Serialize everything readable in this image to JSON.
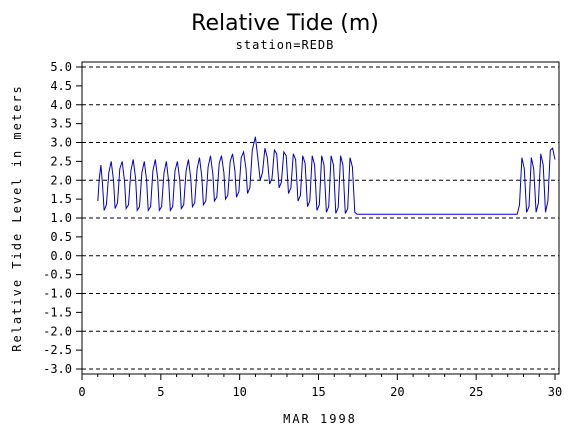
{
  "chart_data": {
    "type": "line",
    "title": "Relative Tide (m)",
    "subtitle": "station=REDB",
    "xlabel": "MAR 1998",
    "ylabel": "Relative Tide Level in meters",
    "xlim": [
      0,
      30
    ],
    "ylim": [
      -3.0,
      5.0
    ],
    "x_ticks": [
      0,
      5,
      10,
      15,
      20,
      25,
      30
    ],
    "y_ticks": [
      -3.0,
      -2.5,
      -2.0,
      -1.5,
      -1.0,
      -0.5,
      0.0,
      0.5,
      1.0,
      1.5,
      2.0,
      2.5,
      3.0,
      3.5,
      4.0,
      4.5,
      5.0
    ],
    "y_tick_labels": [
      "-3.0",
      "-2.5",
      "-2.0",
      "-1.5",
      "-1.0",
      "-0.5",
      "0.0",
      "0.5",
      "1.0",
      "1.5",
      "2.0",
      "2.5",
      "3.0",
      "3.5",
      "4.0",
      "4.5",
      "5.0"
    ],
    "dashed_gridlines_y": [
      -3.0,
      -2.0,
      -1.0,
      0.0,
      1.0,
      2.0,
      3.0,
      4.0,
      5.0
    ],
    "grid": "horizontal dashed at whole meters",
    "line_color": "#0000cc",
    "series": [
      {
        "values": [
          [
            1.0,
            1.45
          ],
          [
            1.1,
            2.05
          ],
          [
            1.2,
            2.4
          ],
          [
            1.3,
            1.9
          ],
          [
            1.4,
            1.2
          ],
          [
            1.55,
            1.35
          ],
          [
            1.7,
            2.2
          ],
          [
            1.85,
            2.5
          ],
          [
            2.0,
            2.0
          ],
          [
            2.1,
            1.25
          ],
          [
            2.25,
            1.4
          ],
          [
            2.4,
            2.3
          ],
          [
            2.55,
            2.5
          ],
          [
            2.7,
            1.95
          ],
          [
            2.8,
            1.25
          ],
          [
            2.95,
            1.35
          ],
          [
            3.1,
            2.25
          ],
          [
            3.25,
            2.55
          ],
          [
            3.4,
            2.05
          ],
          [
            3.5,
            1.2
          ],
          [
            3.65,
            1.3
          ],
          [
            3.8,
            2.2
          ],
          [
            3.95,
            2.5
          ],
          [
            4.1,
            2.0
          ],
          [
            4.2,
            1.2
          ],
          [
            4.35,
            1.3
          ],
          [
            4.5,
            2.25
          ],
          [
            4.65,
            2.55
          ],
          [
            4.8,
            2.05
          ],
          [
            4.9,
            1.2
          ],
          [
            5.05,
            1.3
          ],
          [
            5.2,
            2.2
          ],
          [
            5.35,
            2.5
          ],
          [
            5.5,
            1.95
          ],
          [
            5.6,
            1.2
          ],
          [
            5.75,
            1.3
          ],
          [
            5.9,
            2.25
          ],
          [
            6.05,
            2.5
          ],
          [
            6.2,
            2.0
          ],
          [
            6.3,
            1.25
          ],
          [
            6.45,
            1.35
          ],
          [
            6.6,
            2.25
          ],
          [
            6.75,
            2.55
          ],
          [
            6.9,
            2.05
          ],
          [
            7.0,
            1.3
          ],
          [
            7.15,
            1.4
          ],
          [
            7.3,
            2.3
          ],
          [
            7.45,
            2.6
          ],
          [
            7.6,
            2.1
          ],
          [
            7.7,
            1.35
          ],
          [
            7.85,
            1.45
          ],
          [
            8.0,
            2.35
          ],
          [
            8.15,
            2.65
          ],
          [
            8.3,
            2.15
          ],
          [
            8.4,
            1.45
          ],
          [
            8.55,
            1.55
          ],
          [
            8.7,
            2.45
          ],
          [
            8.85,
            2.65
          ],
          [
            9.0,
            2.2
          ],
          [
            9.1,
            1.5
          ],
          [
            9.25,
            1.6
          ],
          [
            9.4,
            2.5
          ],
          [
            9.55,
            2.7
          ],
          [
            9.7,
            2.25
          ],
          [
            9.8,
            1.55
          ],
          [
            9.95,
            1.7
          ],
          [
            10.1,
            2.6
          ],
          [
            10.25,
            2.75
          ],
          [
            10.4,
            2.3
          ],
          [
            10.5,
            1.65
          ],
          [
            10.65,
            1.8
          ],
          [
            10.8,
            2.8
          ],
          [
            11.0,
            3.15
          ],
          [
            11.15,
            2.6
          ],
          [
            11.3,
            2.0
          ],
          [
            11.45,
            2.2
          ],
          [
            11.6,
            2.85
          ],
          [
            11.75,
            2.6
          ],
          [
            11.9,
            1.9
          ],
          [
            12.05,
            2.05
          ],
          [
            12.2,
            2.8
          ],
          [
            12.35,
            2.7
          ],
          [
            12.5,
            1.8
          ],
          [
            12.65,
            1.95
          ],
          [
            12.8,
            2.75
          ],
          [
            12.95,
            2.65
          ],
          [
            13.1,
            1.65
          ],
          [
            13.25,
            1.8
          ],
          [
            13.4,
            2.7
          ],
          [
            13.55,
            2.55
          ],
          [
            13.7,
            1.45
          ],
          [
            13.85,
            1.6
          ],
          [
            14.0,
            2.65
          ],
          [
            14.15,
            2.45
          ],
          [
            14.3,
            1.3
          ],
          [
            14.45,
            1.45
          ],
          [
            14.6,
            2.65
          ],
          [
            14.75,
            2.4
          ],
          [
            14.9,
            1.2
          ],
          [
            15.05,
            1.35
          ],
          [
            15.2,
            2.65
          ],
          [
            15.35,
            2.4
          ],
          [
            15.5,
            1.15
          ],
          [
            15.65,
            1.3
          ],
          [
            15.8,
            2.65
          ],
          [
            15.95,
            2.4
          ],
          [
            16.1,
            1.12
          ],
          [
            16.25,
            1.28
          ],
          [
            16.4,
            2.65
          ],
          [
            16.55,
            2.4
          ],
          [
            16.7,
            1.12
          ],
          [
            16.85,
            1.25
          ],
          [
            17.0,
            2.6
          ],
          [
            17.15,
            2.35
          ],
          [
            17.3,
            1.15
          ],
          [
            17.45,
            1.1
          ],
          [
            27.6,
            1.1
          ],
          [
            27.75,
            1.35
          ],
          [
            27.9,
            2.6
          ],
          [
            28.05,
            2.3
          ],
          [
            28.2,
            1.15
          ],
          [
            28.35,
            1.3
          ],
          [
            28.5,
            2.6
          ],
          [
            28.65,
            2.3
          ],
          [
            28.8,
            1.15
          ],
          [
            28.95,
            1.4
          ],
          [
            29.1,
            2.7
          ],
          [
            29.25,
            2.4
          ],
          [
            29.4,
            1.15
          ],
          [
            29.55,
            1.45
          ],
          [
            29.7,
            2.8
          ],
          [
            29.85,
            2.85
          ],
          [
            30.0,
            2.55
          ]
        ]
      }
    ]
  }
}
